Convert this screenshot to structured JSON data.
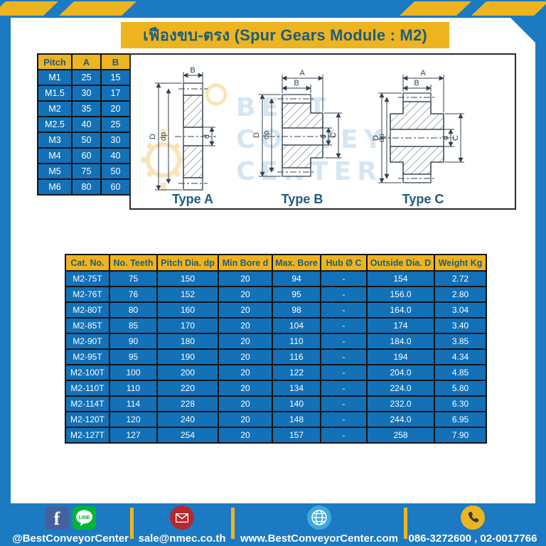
{
  "page": {
    "title": "เฟืองขบ-ตรง (Spur Gears Module : M2)"
  },
  "colors": {
    "frame_blue": "#1b7ac2",
    "table_row_blue": "#1371b8",
    "accent_yellow": "#eeb41f",
    "navy_text": "#1e5c7e",
    "line_green": "#00b733",
    "facebook_blue": "#44619d",
    "mail_red": "#b5282c",
    "globe_blue": "#3fa9dc"
  },
  "pitch_table": {
    "headers": [
      "Pitch",
      "A",
      "B"
    ],
    "rows": [
      [
        "M1",
        "25",
        "15"
      ],
      [
        "M1.5",
        "30",
        "17"
      ],
      [
        "M2",
        "35",
        "20"
      ],
      [
        "M2.5",
        "40",
        "25"
      ],
      [
        "M3",
        "50",
        "30"
      ],
      [
        "M4",
        "60",
        "40"
      ],
      [
        "M5",
        "75",
        "50"
      ],
      [
        "M6",
        "80",
        "60"
      ]
    ]
  },
  "drawings": {
    "watermark_lines": [
      "BEST",
      "CONVEYOR",
      "CENTER"
    ],
    "type_a": {
      "label": "Type A",
      "dims": {
        "width_b": "B",
        "outer_d": "D",
        "pitch_dp": "dp",
        "bore_d": "d"
      }
    },
    "type_b": {
      "label": "Type B",
      "dims": {
        "total_a": "A",
        "width_b": "B",
        "outer_d": "D",
        "pitch_dp": "dp",
        "bore_d": "d",
        "hub_c": "C"
      }
    },
    "type_c": {
      "label": "Type C",
      "dims": {
        "total_a": "A",
        "width_b": "B",
        "outer_d": "D",
        "pitch_dp": "dp",
        "bore_d": "d",
        "hub_c": "C"
      }
    }
  },
  "spec_table": {
    "headers": [
      "Cat. No.",
      "No. Teeth",
      "Pitch Dia. dp",
      "Min Bore d",
      "Max. Bore",
      "Hub Ø C",
      "Outside Dia. D",
      "Weight Kg"
    ],
    "rows": [
      [
        "M2-75T",
        "75",
        "150",
        "20",
        "94",
        "-",
        "154",
        "2.72"
      ],
      [
        "M2-76T",
        "76",
        "152",
        "20",
        "95",
        "-",
        "156.0",
        "2.80"
      ],
      [
        "M2-80T",
        "80",
        "160",
        "20",
        "98",
        "-",
        "164.0",
        "3.04"
      ],
      [
        "M2-85T",
        "85",
        "170",
        "20",
        "104",
        "-",
        "174",
        "3.40"
      ],
      [
        "M2-90T",
        "90",
        "180",
        "20",
        "110",
        "-",
        "184.0",
        "3.85"
      ],
      [
        "M2-95T",
        "95",
        "190",
        "20",
        "116",
        "-",
        "194",
        "4.34"
      ],
      [
        "M2-100T",
        "100",
        "200",
        "20",
        "122",
        "-",
        "204.0",
        "4.85"
      ],
      [
        "M2-110T",
        "110",
        "220",
        "20",
        "134",
        "-",
        "224.0",
        "5.80"
      ],
      [
        "M2-114T",
        "114",
        "228",
        "20",
        "140",
        "-",
        "232.0",
        "6.30"
      ],
      [
        "M2-120T",
        "120",
        "240",
        "20",
        "148",
        "-",
        "244.0",
        "6.95"
      ],
      [
        "M2-127T",
        "127",
        "254",
        "20",
        "157",
        "-",
        "258",
        "7.90"
      ]
    ]
  },
  "footer": {
    "facebook_icon_letter": "f",
    "line_icon_text": "LINE",
    "social_handle": "@BestConveyorCenter",
    "email": "sale@nmec.co.th",
    "website": "www.BestConveyorCenter.com",
    "phone_numbers": "086-3272600 , 02-0017766"
  }
}
